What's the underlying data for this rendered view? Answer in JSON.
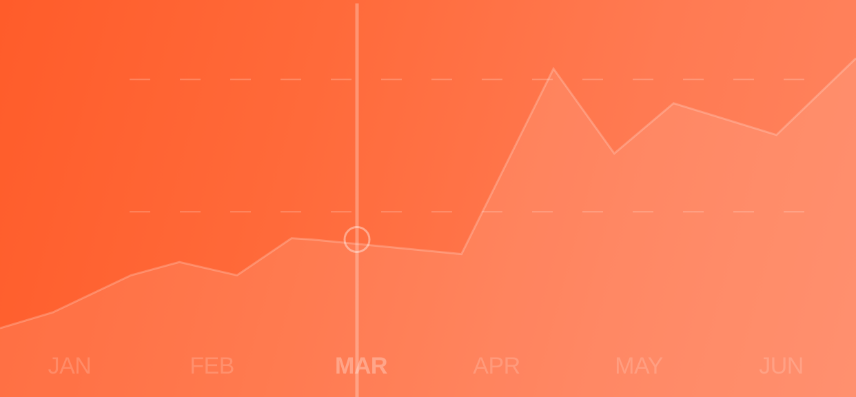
{
  "chart_data": {
    "type": "area",
    "categories": [
      "JAN",
      "FEB",
      "MAR",
      "APR",
      "MAY",
      "JUN"
    ],
    "selected_category": "MAR",
    "x": [
      0.0,
      0.34,
      0.84,
      1.15,
      1.52,
      1.87,
      2.0,
      2.96,
      3.55,
      3.94,
      4.32,
      4.98,
      5.49
    ],
    "y": [
      0.6,
      1.2,
      2.6,
      3.1,
      2.6,
      4.0,
      3.95,
      3.4,
      10.4,
      7.2,
      9.1,
      7.9,
      10.8
    ],
    "marker": {
      "x": 2.0,
      "y": 3.95
    },
    "ylim": [
      -2.0,
      13.0
    ],
    "xlim": [
      0.0,
      5.49
    ],
    "gridlines": [
      5.0,
      10.0
    ],
    "grid": "dashed horizontal",
    "colors": {
      "background_start": "#ff5c2a",
      "background_end": "#ff845f",
      "area_fill": "#ffffff",
      "line": "#ffffff",
      "label": "#ffffff"
    }
  }
}
